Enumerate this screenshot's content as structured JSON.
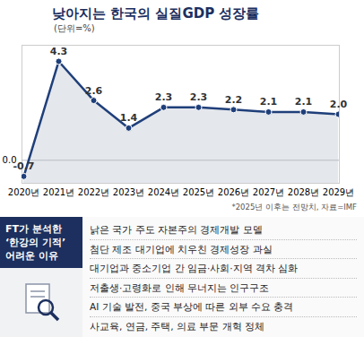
{
  "chart_data": {
    "type": "line",
    "title": "낮아지는 한국의 실질GDP 성장률",
    "subtitle": "(단위=%)",
    "note": "*2025년 이후는 전망치, 자료=IMF",
    "categories": [
      "2020년",
      "2021년",
      "2022년",
      "2023년",
      "2024년",
      "2025년",
      "2026년",
      "2027년",
      "2028년",
      "2029년"
    ],
    "values": [
      -0.7,
      4.3,
      2.6,
      1.4,
      2.3,
      2.3,
      2.2,
      2.1,
      2.1,
      2.0
    ],
    "value_labels": [
      "-0.7",
      "4.3",
      "2.6",
      "1.4",
      "2.3",
      "2.3",
      "2.2",
      "2.1",
      "2.1",
      "2.0"
    ],
    "color": "#1f3f7a",
    "marker": "circle",
    "data_labels": true,
    "ylim": [
      -1,
      5
    ],
    "yticks": [
      0
    ],
    "grid": false
  },
  "panel": {
    "title_lines": [
      "FT가 분석한",
      "‘한강의 기적’",
      "어려운 이유"
    ],
    "items": [
      "낡은 국가 주도 자본주의 경제개발 모델",
      "첨단 제조 대기업에 치우친 경제성장 과실",
      "대기업과 중소기업 간 임금·사회·지역 격차 심화",
      "저출생·고령화로 인해 무너지는 인구구조",
      "AI 기술 발전, 중국 부상에 따른 외부 수요 충격",
      "사교육, 연금, 주택, 의료 부문 개혁 정체"
    ]
  }
}
